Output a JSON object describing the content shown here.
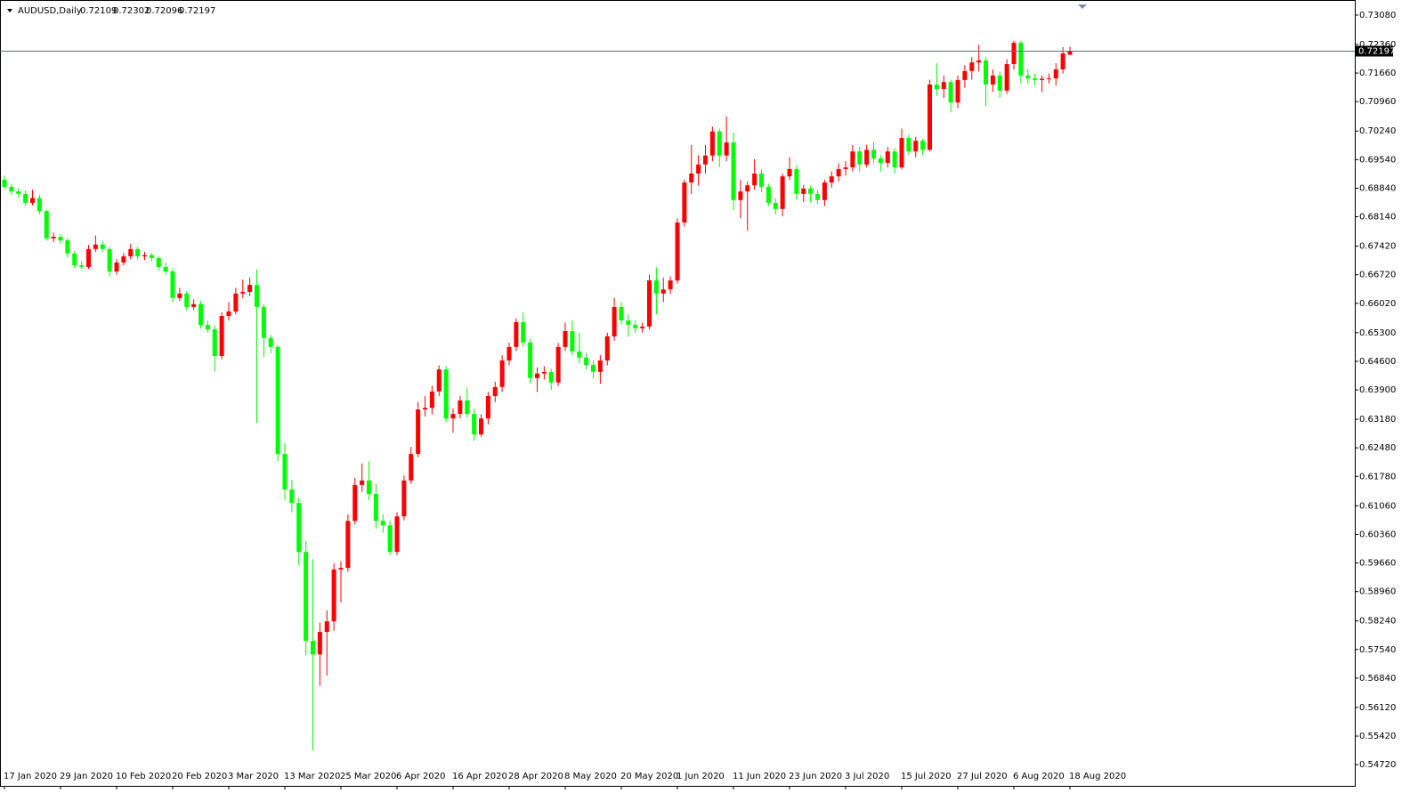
{
  "chart_data": {
    "type": "candlestick",
    "title": "AUDUSD,Daily",
    "up_color": "#ff0000",
    "down_color": "#00ff00",
    "grid": false,
    "categories": [
      "17 Jan 2020",
      null,
      null,
      null,
      null,
      null,
      null,
      null,
      "29 Jan 2020",
      null,
      null,
      null,
      null,
      null,
      null,
      null,
      "10 Feb 2020",
      null,
      null,
      null,
      null,
      null,
      null,
      null,
      "20 Feb 2020",
      null,
      null,
      null,
      null,
      null,
      null,
      null,
      "3 Mar 2020",
      null,
      null,
      null,
      null,
      null,
      null,
      null,
      "13 Mar 2020",
      null,
      null,
      null,
      null,
      null,
      null,
      null,
      "25 Mar 2020",
      null,
      null,
      null,
      null,
      null,
      null,
      null,
      "6 Apr 2020",
      null,
      null,
      null,
      null,
      null,
      null,
      null,
      "16 Apr 2020",
      null,
      null,
      null,
      null,
      null,
      null,
      null,
      "28 Apr 2020",
      null,
      null,
      null,
      null,
      null,
      null,
      null,
      "8 May 2020",
      null,
      null,
      null,
      null,
      null,
      null,
      null,
      "20 May 2020",
      null,
      null,
      null,
      null,
      null,
      null,
      null,
      "1 Jun 2020",
      null,
      null,
      null,
      null,
      null,
      null,
      null,
      "11 Jun 2020",
      null,
      null,
      null,
      null,
      null,
      null,
      null,
      "23 Jun 2020",
      null,
      null,
      null,
      null,
      null,
      null,
      null,
      "3 Jul 2020",
      null,
      null,
      null,
      null,
      null,
      null,
      null,
      "15 Jul 2020",
      null,
      null,
      null,
      null,
      null,
      null,
      null,
      "27 Jul 2020",
      null,
      null,
      null,
      null,
      null,
      null,
      null,
      "6 Aug 2020",
      null,
      null,
      null,
      null,
      null,
      null,
      null,
      "18 Aug 2020"
    ],
    "ohlc": [
      [
        0.6905,
        0.6915,
        0.688,
        0.6887
      ],
      [
        0.6887,
        0.6895,
        0.6868,
        0.6876
      ],
      [
        0.6876,
        0.6884,
        0.6862,
        0.687
      ],
      [
        0.687,
        0.6878,
        0.684,
        0.6848
      ],
      [
        0.6848,
        0.688,
        0.6842,
        0.686
      ],
      [
        0.686,
        0.6868,
        0.682,
        0.6828
      ],
      [
        0.6828,
        0.6832,
        0.6755,
        0.6761
      ],
      [
        0.6761,
        0.6775,
        0.6752,
        0.6765
      ],
      [
        0.6765,
        0.6772,
        0.6748,
        0.6756
      ],
      [
        0.6756,
        0.6762,
        0.6715,
        0.6724
      ],
      [
        0.6724,
        0.673,
        0.6688,
        0.6695
      ],
      [
        0.6695,
        0.6705,
        0.6686,
        0.6691
      ],
      [
        0.6691,
        0.6745,
        0.6686,
        0.6735
      ],
      [
        0.6735,
        0.6768,
        0.6728,
        0.6746
      ],
      [
        0.6746,
        0.6755,
        0.6728,
        0.6735
      ],
      [
        0.6735,
        0.674,
        0.6668,
        0.668
      ],
      [
        0.668,
        0.671,
        0.6672,
        0.6702
      ],
      [
        0.6702,
        0.6725,
        0.6695,
        0.6717
      ],
      [
        0.6717,
        0.6748,
        0.671,
        0.6735
      ],
      [
        0.6735,
        0.674,
        0.671,
        0.6717
      ],
      [
        0.6717,
        0.6728,
        0.6708,
        0.672
      ],
      [
        0.672,
        0.6725,
        0.6705,
        0.6713
      ],
      [
        0.6713,
        0.6718,
        0.6682,
        0.6691
      ],
      [
        0.6691,
        0.6702,
        0.6672,
        0.668
      ],
      [
        0.668,
        0.6688,
        0.6605,
        0.6615
      ],
      [
        0.6615,
        0.664,
        0.6608,
        0.6626
      ],
      [
        0.6626,
        0.6632,
        0.6585,
        0.6593
      ],
      [
        0.6593,
        0.6612,
        0.6585,
        0.66
      ],
      [
        0.66,
        0.6608,
        0.654,
        0.6549
      ],
      [
        0.6549,
        0.656,
        0.653,
        0.6538
      ],
      [
        0.6538,
        0.6548,
        0.6435,
        0.6473
      ],
      [
        0.6473,
        0.658,
        0.6465,
        0.6571
      ],
      [
        0.6571,
        0.6605,
        0.656,
        0.6582
      ],
      [
        0.6582,
        0.664,
        0.6575,
        0.6626
      ],
      [
        0.6626,
        0.666,
        0.6615,
        0.663
      ],
      [
        0.663,
        0.6665,
        0.662,
        0.6647
      ],
      [
        0.6647,
        0.6685,
        0.6309,
        0.6593
      ],
      [
        0.6593,
        0.66,
        0.647,
        0.6517
      ],
      [
        0.6517,
        0.6525,
        0.648,
        0.6495
      ],
      [
        0.6495,
        0.65,
        0.6215,
        0.6233
      ],
      [
        0.6233,
        0.626,
        0.612,
        0.6146
      ],
      [
        0.6146,
        0.617,
        0.609,
        0.6113
      ],
      [
        0.6113,
        0.6125,
        0.596,
        0.5993
      ],
      [
        0.5993,
        0.602,
        0.574,
        0.5775
      ],
      [
        0.5775,
        0.5975,
        0.5507,
        0.5742
      ],
      [
        0.5742,
        0.582,
        0.5665,
        0.5797
      ],
      [
        0.5797,
        0.585,
        0.569,
        0.5823
      ],
      [
        0.5823,
        0.5965,
        0.58,
        0.595
      ],
      [
        0.595,
        0.597,
        0.587,
        0.5954
      ],
      [
        0.5954,
        0.6085,
        0.5945,
        0.6069
      ],
      [
        0.6069,
        0.6175,
        0.606,
        0.6157
      ],
      [
        0.6157,
        0.621,
        0.614,
        0.6168
      ],
      [
        0.6168,
        0.6215,
        0.612,
        0.6135
      ],
      [
        0.6135,
        0.616,
        0.605,
        0.6069
      ],
      [
        0.6069,
        0.6085,
        0.604,
        0.6058
      ],
      [
        0.6058,
        0.607,
        0.5985,
        0.5993
      ],
      [
        0.5993,
        0.609,
        0.5985,
        0.608
      ],
      [
        0.608,
        0.618,
        0.607,
        0.6168
      ],
      [
        0.6168,
        0.625,
        0.616,
        0.6233
      ],
      [
        0.6233,
        0.636,
        0.6225,
        0.6342
      ],
      [
        0.6342,
        0.6375,
        0.6325,
        0.6346
      ],
      [
        0.6346,
        0.64,
        0.633,
        0.6386
      ],
      [
        0.6386,
        0.645,
        0.6375,
        0.644
      ],
      [
        0.644,
        0.6448,
        0.631,
        0.632
      ],
      [
        0.632,
        0.6345,
        0.6285,
        0.6331
      ],
      [
        0.6331,
        0.6375,
        0.632,
        0.6364
      ],
      [
        0.6364,
        0.6395,
        0.6322,
        0.6331
      ],
      [
        0.6331,
        0.6345,
        0.6265,
        0.6281
      ],
      [
        0.6281,
        0.633,
        0.6275,
        0.632
      ],
      [
        0.632,
        0.6385,
        0.6305,
        0.6375
      ],
      [
        0.6375,
        0.641,
        0.636,
        0.6397
      ],
      [
        0.6397,
        0.6475,
        0.6385,
        0.6462
      ],
      [
        0.6462,
        0.6505,
        0.645,
        0.6495
      ],
      [
        0.6495,
        0.6565,
        0.6485,
        0.6556
      ],
      [
        0.6556,
        0.658,
        0.6495,
        0.6506
      ],
      [
        0.6506,
        0.6515,
        0.6405,
        0.6419
      ],
      [
        0.6419,
        0.6445,
        0.6385,
        0.643
      ],
      [
        0.643,
        0.6448,
        0.6415,
        0.6434
      ],
      [
        0.6434,
        0.6442,
        0.639,
        0.6408
      ],
      [
        0.6408,
        0.6505,
        0.64,
        0.6495
      ],
      [
        0.6495,
        0.6555,
        0.6485,
        0.6534
      ],
      [
        0.6534,
        0.656,
        0.6475,
        0.6484
      ],
      [
        0.6484,
        0.653,
        0.6455,
        0.6469
      ],
      [
        0.6469,
        0.648,
        0.644,
        0.6451
      ],
      [
        0.6451,
        0.6462,
        0.6418,
        0.6434
      ],
      [
        0.6434,
        0.6475,
        0.6405,
        0.6462
      ],
      [
        0.6462,
        0.653,
        0.645,
        0.6521
      ],
      [
        0.6521,
        0.6615,
        0.651,
        0.6593
      ],
      [
        0.6593,
        0.6605,
        0.655,
        0.656
      ],
      [
        0.656,
        0.6575,
        0.652,
        0.6549
      ],
      [
        0.6549,
        0.656,
        0.653,
        0.6541
      ],
      [
        0.6541,
        0.6555,
        0.653,
        0.6545
      ],
      [
        0.6545,
        0.6672,
        0.6538,
        0.6658
      ],
      [
        0.6658,
        0.669,
        0.6575,
        0.6626
      ],
      [
        0.6626,
        0.6665,
        0.6605,
        0.6636
      ],
      [
        0.6636,
        0.6668,
        0.6625,
        0.6658
      ],
      [
        0.6658,
        0.681,
        0.665,
        0.68
      ],
      [
        0.68,
        0.6905,
        0.679,
        0.6898
      ],
      [
        0.6898,
        0.699,
        0.687,
        0.692
      ],
      [
        0.692,
        0.6965,
        0.689,
        0.6942
      ],
      [
        0.6942,
        0.699,
        0.692,
        0.6964
      ],
      [
        0.6964,
        0.7035,
        0.695,
        0.7023
      ],
      [
        0.7023,
        0.703,
        0.6935,
        0.6964
      ],
      [
        0.6964,
        0.706,
        0.695,
        0.6996
      ],
      [
        0.6996,
        0.702,
        0.683,
        0.6855
      ],
      [
        0.6855,
        0.6905,
        0.681,
        0.6876
      ],
      [
        0.6876,
        0.69,
        0.678,
        0.6891
      ],
      [
        0.6891,
        0.6955,
        0.688,
        0.692
      ],
      [
        0.692,
        0.693,
        0.6875,
        0.6887
      ],
      [
        0.6887,
        0.6895,
        0.684,
        0.6848
      ],
      [
        0.6848,
        0.686,
        0.682,
        0.6833
      ],
      [
        0.6833,
        0.692,
        0.6815,
        0.6913
      ],
      [
        0.6913,
        0.696,
        0.6905,
        0.6931
      ],
      [
        0.6931,
        0.694,
        0.6855,
        0.687
      ],
      [
        0.687,
        0.6892,
        0.685,
        0.6883
      ],
      [
        0.6883,
        0.689,
        0.685,
        0.687
      ],
      [
        0.687,
        0.688,
        0.6845,
        0.6855
      ],
      [
        0.6855,
        0.6905,
        0.684,
        0.6898
      ],
      [
        0.6898,
        0.6925,
        0.6885,
        0.6913
      ],
      [
        0.6913,
        0.6945,
        0.69,
        0.6931
      ],
      [
        0.6931,
        0.695,
        0.6915,
        0.6935
      ],
      [
        0.6935,
        0.699,
        0.6925,
        0.6974
      ],
      [
        0.6974,
        0.6985,
        0.6925,
        0.6942
      ],
      [
        0.6942,
        0.699,
        0.6935,
        0.6978
      ],
      [
        0.6978,
        0.6998,
        0.6945,
        0.6957
      ],
      [
        0.6957,
        0.6965,
        0.6925,
        0.6946
      ],
      [
        0.6946,
        0.6985,
        0.6935,
        0.6974
      ],
      [
        0.6974,
        0.6982,
        0.692,
        0.6935
      ],
      [
        0.6935,
        0.703,
        0.693,
        0.7007
      ],
      [
        0.7007,
        0.7015,
        0.6965,
        0.6974
      ],
      [
        0.6974,
        0.701,
        0.696,
        0.7
      ],
      [
        0.7,
        0.7005,
        0.6965,
        0.6978
      ],
      [
        0.6978,
        0.715,
        0.6975,
        0.7138
      ],
      [
        0.7138,
        0.719,
        0.711,
        0.7127
      ],
      [
        0.7127,
        0.716,
        0.7105,
        0.7144
      ],
      [
        0.7144,
        0.715,
        0.707,
        0.7094
      ],
      [
        0.7094,
        0.716,
        0.708,
        0.7149
      ],
      [
        0.7149,
        0.7185,
        0.713,
        0.7171
      ],
      [
        0.7171,
        0.7205,
        0.715,
        0.7192
      ],
      [
        0.7192,
        0.7235,
        0.717,
        0.7197
      ],
      [
        0.7197,
        0.7205,
        0.7085,
        0.7138
      ],
      [
        0.7138,
        0.7175,
        0.712,
        0.716
      ],
      [
        0.716,
        0.717,
        0.7105,
        0.7123
      ],
      [
        0.7123,
        0.72,
        0.7115,
        0.7188
      ],
      [
        0.7188,
        0.7245,
        0.7175,
        0.724
      ],
      [
        0.724,
        0.7245,
        0.714,
        0.716
      ],
      [
        0.716,
        0.7175,
        0.714,
        0.7153
      ],
      [
        0.7153,
        0.7165,
        0.7135,
        0.7149
      ],
      [
        0.7149,
        0.716,
        0.712,
        0.7152
      ],
      [
        0.7152,
        0.7165,
        0.714,
        0.7153
      ],
      [
        0.7153,
        0.719,
        0.7135,
        0.7175
      ],
      [
        0.7175,
        0.723,
        0.7165,
        0.7214
      ],
      [
        0.72109,
        0.72302,
        0.72096,
        0.72197
      ]
    ],
    "ylim": [
      0.542,
      0.7345
    ],
    "yticks": [
      {
        "value": 0.7308,
        "label": "0.73080"
      },
      {
        "value": 0.7236,
        "label": "0.72360"
      },
      {
        "value": 0.7166,
        "label": "0.71660"
      },
      {
        "value": 0.7096,
        "label": "0.70960"
      },
      {
        "value": 0.7024,
        "label": "0.70240"
      },
      {
        "value": 0.6954,
        "label": "0.69540"
      },
      {
        "value": 0.6884,
        "label": "0.68840"
      },
      {
        "value": 0.6814,
        "label": "0.68140"
      },
      {
        "value": 0.6742,
        "label": "0.67420"
      },
      {
        "value": 0.6672,
        "label": "0.66720"
      },
      {
        "value": 0.6602,
        "label": "0.66020"
      },
      {
        "value": 0.653,
        "label": "0.65300"
      },
      {
        "value": 0.646,
        "label": "0.64600"
      },
      {
        "value": 0.639,
        "label": "0.63900"
      },
      {
        "value": 0.6318,
        "label": "0.63180"
      },
      {
        "value": 0.6248,
        "label": "0.62480"
      },
      {
        "value": 0.6178,
        "label": "0.61780"
      },
      {
        "value": 0.6106,
        "label": "0.61060"
      },
      {
        "value": 0.6036,
        "label": "0.60360"
      },
      {
        "value": 0.5966,
        "label": "0.59660"
      },
      {
        "value": 0.5896,
        "label": "0.58960"
      },
      {
        "value": 0.5824,
        "label": "0.58240"
      },
      {
        "value": 0.5754,
        "label": "0.57540"
      },
      {
        "value": 0.5684,
        "label": "0.56840"
      },
      {
        "value": 0.5612,
        "label": "0.56120"
      },
      {
        "value": 0.5542,
        "label": "0.55420"
      },
      {
        "value": 0.5472,
        "label": "0.54720"
      }
    ]
  }
}
